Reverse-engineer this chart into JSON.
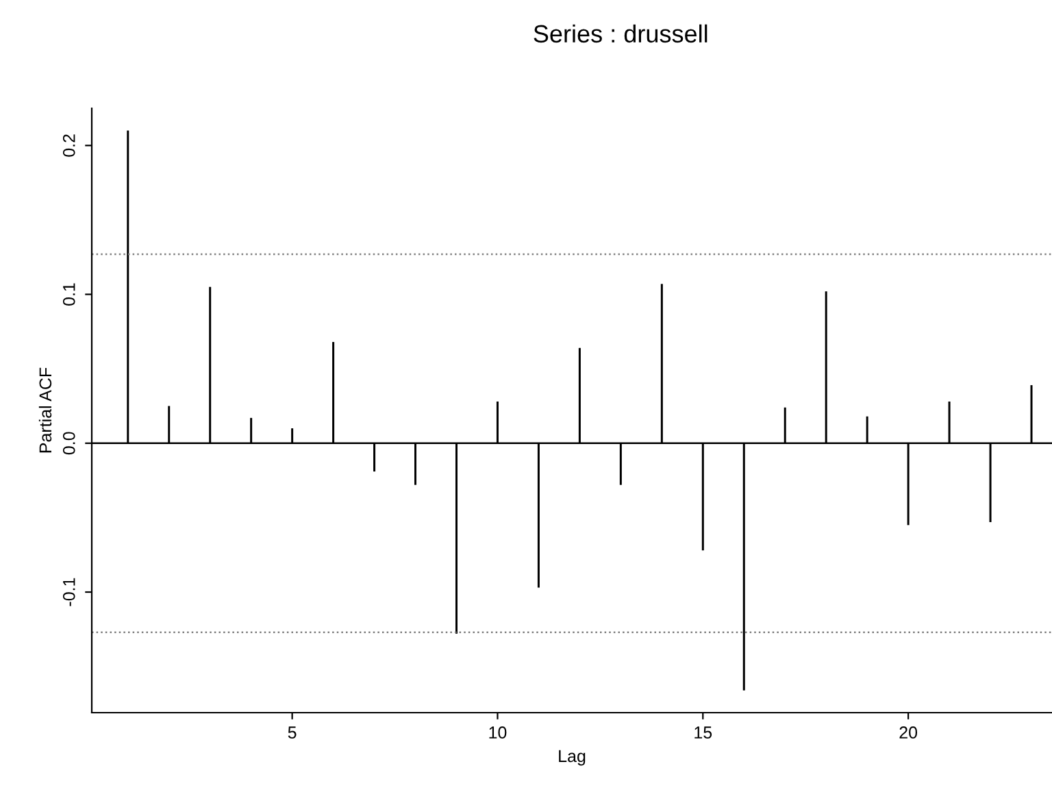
{
  "chart_data": {
    "type": "bar",
    "title": "Series : drussell",
    "xlabel": "Lag",
    "ylabel": "Partial ACF",
    "x": [
      1,
      2,
      3,
      4,
      5,
      6,
      7,
      8,
      9,
      10,
      11,
      12,
      13,
      14,
      15,
      16,
      17,
      18,
      19,
      20,
      21,
      22,
      23
    ],
    "values": [
      0.21,
      0.025,
      0.105,
      0.017,
      0.01,
      0.068,
      -0.019,
      -0.028,
      -0.128,
      0.028,
      -0.097,
      0.064,
      -0.028,
      0.107,
      -0.072,
      -0.166,
      0.024,
      0.102,
      0.018,
      -0.055,
      0.028,
      -0.053,
      0.039
    ],
    "color": "#000000",
    "xlim": [
      0.12,
      23.5
    ],
    "ylim": [
      -0.181,
      0.225
    ],
    "xticks": [
      5,
      10,
      15,
      20
    ],
    "yticks": [
      {
        "value": -0.1,
        "label": "-0.1"
      },
      {
        "value": 0.0,
        "label": "0.0"
      },
      0.1,
      0.2
    ],
    "ref_lines": [
      {
        "axis": "y",
        "value": 0,
        "color": "#000000",
        "line_style": "solid"
      },
      {
        "axis": "y",
        "value": 0.127,
        "color": "#808080",
        "line_style": "dotted"
      },
      {
        "axis": "y",
        "value": -0.127,
        "color": "#808080",
        "line_style": "dotted"
      }
    ],
    "grid": false,
    "legend": false
  }
}
